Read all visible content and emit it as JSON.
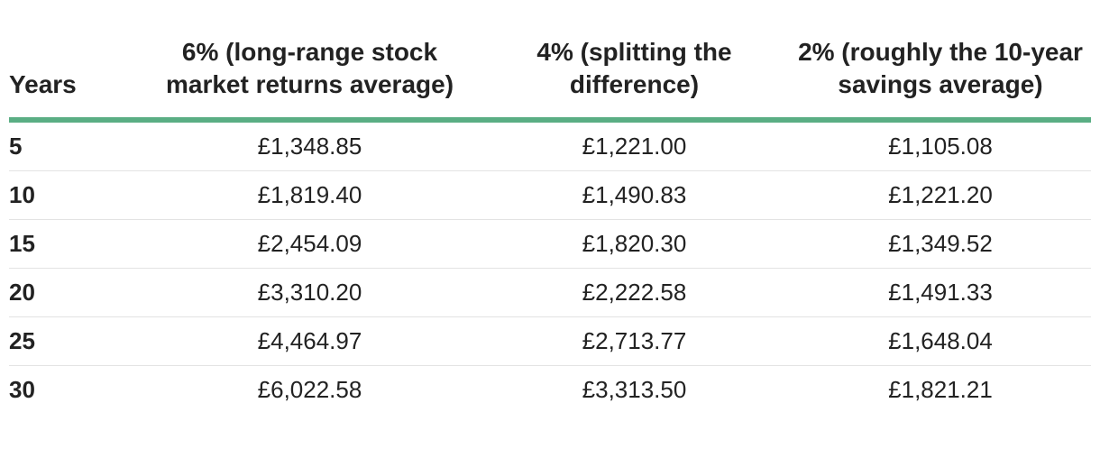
{
  "chart_data": {
    "type": "table",
    "columns": [
      "Years",
      "6% (long-range stock market returns average)",
      "4% (splitting the difference)",
      "2% (roughly the 10-year savings average)"
    ],
    "rows": [
      [
        "5",
        "£1,348.85",
        "£1,221.00",
        "£1,105.08"
      ],
      [
        "10",
        "£1,819.40",
        "£1,490.83",
        "£1,221.20"
      ],
      [
        "15",
        "£2,454.09",
        "£1,820.30",
        "£1,349.52"
      ],
      [
        "20",
        "£3,310.20",
        "£2,222.58",
        "£1,491.33"
      ],
      [
        "25",
        "£4,464.97",
        "£2,713.77",
        "£1,648.04"
      ],
      [
        "30",
        "£6,022.58",
        "£3,313.50",
        "£1,821.21"
      ]
    ]
  },
  "colors": {
    "header_rule": "#5aae84",
    "row_divider": "#e3e3e3",
    "text": "#222222"
  }
}
